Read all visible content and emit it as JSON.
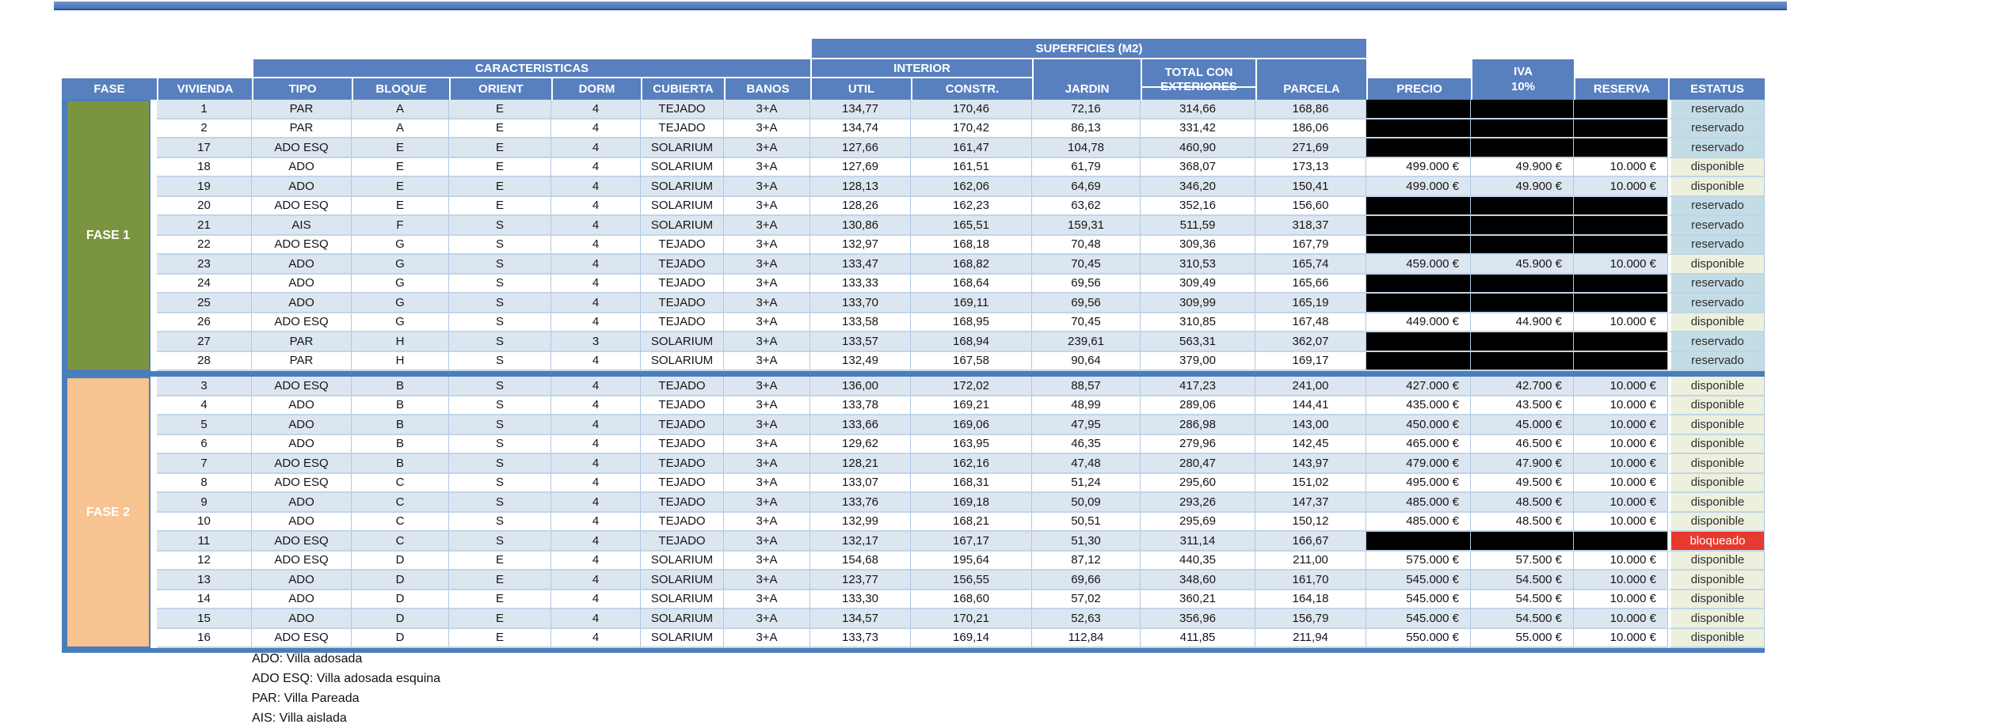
{
  "table": {
    "banners": {
      "superficies": "SUPERFICIES (M2)",
      "caracteristicas": "CARACTERISTICAS",
      "interior": "INTERIOR"
    },
    "headers": {
      "fase": "FASE",
      "vivienda": "VIVIENDA",
      "tipo": "TIPO",
      "bloque": "BLOQUE",
      "orient": "ORIENT",
      "dorm": "DORM",
      "cubierta": "CUBIERTA",
      "banos": "BANOS",
      "util": "UTIL",
      "constr": "CONSTR.",
      "jardin": "JARDIN",
      "total_line1": "TOTAL CON",
      "total_line2": "EXTERIORES",
      "parcela": "PARCELA",
      "precio": "PRECIO",
      "iva_line1": "IVA",
      "iva_line2": "10%",
      "reserva": "RESERVA",
      "estatus": "ESTATUS"
    },
    "colors": {
      "header_blue": "#5880bf",
      "table_border_blue": "#4a7ebb",
      "stripe_blue": "#dce6f1",
      "fase1_green": "#7b9440",
      "fase2_orange": "#f6c391",
      "status_reservado": "#c3dde6",
      "status_disponible": "#edf0dc",
      "status_bloqueado": "#e8392f",
      "redacted_black": "#000000"
    },
    "phases": [
      {
        "label": "FASE 1",
        "color": "#7b9440",
        "rows": [
          {
            "vivienda": "1",
            "tipo": "PAR",
            "bloque": "A",
            "orient": "E",
            "dorm": "4",
            "cubierta": "TEJADO",
            "banos": "3+A",
            "util": "134,77",
            "constr": "170,46",
            "jardin": "72,16",
            "total": "314,66",
            "parcela": "168,86",
            "precio": "",
            "iva": "",
            "reserva": "",
            "estatus": "reservado",
            "redacted": true
          },
          {
            "vivienda": "2",
            "tipo": "PAR",
            "bloque": "A",
            "orient": "E",
            "dorm": "4",
            "cubierta": "TEJADO",
            "banos": "3+A",
            "util": "134,74",
            "constr": "170,42",
            "jardin": "86,13",
            "total": "331,42",
            "parcela": "186,06",
            "precio": "",
            "iva": "",
            "reserva": "",
            "estatus": "reservado",
            "redacted": true
          },
          {
            "vivienda": "17",
            "tipo": "ADO ESQ",
            "bloque": "E",
            "orient": "E",
            "dorm": "4",
            "cubierta": "SOLARIUM",
            "banos": "3+A",
            "util": "127,66",
            "constr": "161,47",
            "jardin": "104,78",
            "total": "460,90",
            "parcela": "271,69",
            "precio": "",
            "iva": "",
            "reserva": "",
            "estatus": "reservado",
            "redacted": true
          },
          {
            "vivienda": "18",
            "tipo": "ADO",
            "bloque": "E",
            "orient": "E",
            "dorm": "4",
            "cubierta": "SOLARIUM",
            "banos": "3+A",
            "util": "127,69",
            "constr": "161,51",
            "jardin": "61,79",
            "total": "368,07",
            "parcela": "173,13",
            "precio": "499.000 €",
            "iva": "49.900 €",
            "reserva": "10.000 €",
            "estatus": "disponible",
            "redacted": false
          },
          {
            "vivienda": "19",
            "tipo": "ADO",
            "bloque": "E",
            "orient": "E",
            "dorm": "4",
            "cubierta": "SOLARIUM",
            "banos": "3+A",
            "util": "128,13",
            "constr": "162,06",
            "jardin": "64,69",
            "total": "346,20",
            "parcela": "150,41",
            "precio": "499.000 €",
            "iva": "49.900 €",
            "reserva": "10.000 €",
            "estatus": "disponible",
            "redacted": false
          },
          {
            "vivienda": "20",
            "tipo": "ADO ESQ",
            "bloque": "E",
            "orient": "E",
            "dorm": "4",
            "cubierta": "SOLARIUM",
            "banos": "3+A",
            "util": "128,26",
            "constr": "162,23",
            "jardin": "63,62",
            "total": "352,16",
            "parcela": "156,60",
            "precio": "",
            "iva": "",
            "reserva": "",
            "estatus": "reservado",
            "redacted": true
          },
          {
            "vivienda": "21",
            "tipo": "AIS",
            "bloque": "F",
            "orient": "S",
            "dorm": "4",
            "cubierta": "SOLARIUM",
            "banos": "3+A",
            "util": "130,86",
            "constr": "165,51",
            "jardin": "159,31",
            "total": "511,59",
            "parcela": "318,37",
            "precio": "",
            "iva": "",
            "reserva": "",
            "estatus": "reservado",
            "redacted": true
          },
          {
            "vivienda": "22",
            "tipo": "ADO ESQ",
            "bloque": "G",
            "orient": "S",
            "dorm": "4",
            "cubierta": "TEJADO",
            "banos": "3+A",
            "util": "132,97",
            "constr": "168,18",
            "jardin": "70,48",
            "total": "309,36",
            "parcela": "167,79",
            "precio": "",
            "iva": "",
            "reserva": "",
            "estatus": "reservado",
            "redacted": true
          },
          {
            "vivienda": "23",
            "tipo": "ADO",
            "bloque": "G",
            "orient": "S",
            "dorm": "4",
            "cubierta": "TEJADO",
            "banos": "3+A",
            "util": "133,47",
            "constr": "168,82",
            "jardin": "70,45",
            "total": "310,53",
            "parcela": "165,74",
            "precio": "459.000 €",
            "iva": "45.900 €",
            "reserva": "10.000 €",
            "estatus": "disponible",
            "redacted": false
          },
          {
            "vivienda": "24",
            "tipo": "ADO",
            "bloque": "G",
            "orient": "S",
            "dorm": "4",
            "cubierta": "TEJADO",
            "banos": "3+A",
            "util": "133,33",
            "constr": "168,64",
            "jardin": "69,56",
            "total": "309,49",
            "parcela": "165,66",
            "precio": "",
            "iva": "",
            "reserva": "",
            "estatus": "reservado",
            "redacted": true
          },
          {
            "vivienda": "25",
            "tipo": "ADO",
            "bloque": "G",
            "orient": "S",
            "dorm": "4",
            "cubierta": "TEJADO",
            "banos": "3+A",
            "util": "133,70",
            "constr": "169,11",
            "jardin": "69,56",
            "total": "309,99",
            "parcela": "165,19",
            "precio": "",
            "iva": "",
            "reserva": "",
            "estatus": "reservado",
            "redacted": true
          },
          {
            "vivienda": "26",
            "tipo": "ADO ESQ",
            "bloque": "G",
            "orient": "S",
            "dorm": "4",
            "cubierta": "TEJADO",
            "banos": "3+A",
            "util": "133,58",
            "constr": "168,95",
            "jardin": "70,45",
            "total": "310,85",
            "parcela": "167,48",
            "precio": "449.000 €",
            "iva": "44.900 €",
            "reserva": "10.000 €",
            "estatus": "disponible",
            "redacted": false
          },
          {
            "vivienda": "27",
            "tipo": "PAR",
            "bloque": "H",
            "orient": "S",
            "dorm": "3",
            "cubierta": "SOLARIUM",
            "banos": "3+A",
            "util": "133,57",
            "constr": "168,94",
            "jardin": "239,61",
            "total": "563,31",
            "parcela": "362,07",
            "precio": "",
            "iva": "",
            "reserva": "",
            "estatus": "reservado",
            "redacted": true
          },
          {
            "vivienda": "28",
            "tipo": "PAR",
            "bloque": "H",
            "orient": "S",
            "dorm": "4",
            "cubierta": "SOLARIUM",
            "banos": "3+A",
            "util": "132,49",
            "constr": "167,58",
            "jardin": "90,64",
            "total": "379,00",
            "parcela": "169,17",
            "precio": "",
            "iva": "",
            "reserva": "",
            "estatus": "reservado",
            "redacted": true
          }
        ]
      },
      {
        "label": "FASE 2",
        "color": "#f6c391",
        "rows": [
          {
            "vivienda": "3",
            "tipo": "ADO ESQ",
            "bloque": "B",
            "orient": "S",
            "dorm": "4",
            "cubierta": "TEJADO",
            "banos": "3+A",
            "util": "136,00",
            "constr": "172,02",
            "jardin": "88,57",
            "total": "417,23",
            "parcela": "241,00",
            "precio": "427.000 €",
            "iva": "42.700 €",
            "reserva": "10.000 €",
            "estatus": "disponible",
            "redacted": false
          },
          {
            "vivienda": "4",
            "tipo": "ADO",
            "bloque": "B",
            "orient": "S",
            "dorm": "4",
            "cubierta": "TEJADO",
            "banos": "3+A",
            "util": "133,78",
            "constr": "169,21",
            "jardin": "48,99",
            "total": "289,06",
            "parcela": "144,41",
            "precio": "435.000 €",
            "iva": "43.500 €",
            "reserva": "10.000 €",
            "estatus": "disponible",
            "redacted": false
          },
          {
            "vivienda": "5",
            "tipo": "ADO",
            "bloque": "B",
            "orient": "S",
            "dorm": "4",
            "cubierta": "TEJADO",
            "banos": "3+A",
            "util": "133,66",
            "constr": "169,06",
            "jardin": "47,95",
            "total": "286,98",
            "parcela": "143,00",
            "precio": "450.000 €",
            "iva": "45.000 €",
            "reserva": "10.000 €",
            "estatus": "disponible",
            "redacted": false
          },
          {
            "vivienda": "6",
            "tipo": "ADO",
            "bloque": "B",
            "orient": "S",
            "dorm": "4",
            "cubierta": "TEJADO",
            "banos": "3+A",
            "util": "129,62",
            "constr": "163,95",
            "jardin": "46,35",
            "total": "279,96",
            "parcela": "142,45",
            "precio": "465.000 €",
            "iva": "46.500 €",
            "reserva": "10.000 €",
            "estatus": "disponible",
            "redacted": false
          },
          {
            "vivienda": "7",
            "tipo": "ADO ESQ",
            "bloque": "B",
            "orient": "S",
            "dorm": "4",
            "cubierta": "TEJADO",
            "banos": "3+A",
            "util": "128,21",
            "constr": "162,16",
            "jardin": "47,48",
            "total": "280,47",
            "parcela": "143,97",
            "precio": "479.000 €",
            "iva": "47.900 €",
            "reserva": "10.000 €",
            "estatus": "disponible",
            "redacted": false
          },
          {
            "vivienda": "8",
            "tipo": "ADO ESQ",
            "bloque": "C",
            "orient": "S",
            "dorm": "4",
            "cubierta": "TEJADO",
            "banos": "3+A",
            "util": "133,07",
            "constr": "168,31",
            "jardin": "51,24",
            "total": "295,60",
            "parcela": "151,02",
            "precio": "495.000 €",
            "iva": "49.500 €",
            "reserva": "10.000 €",
            "estatus": "disponible",
            "redacted": false
          },
          {
            "vivienda": "9",
            "tipo": "ADO",
            "bloque": "C",
            "orient": "S",
            "dorm": "4",
            "cubierta": "TEJADO",
            "banos": "3+A",
            "util": "133,76",
            "constr": "169,18",
            "jardin": "50,09",
            "total": "293,26",
            "parcela": "147,37",
            "precio": "485.000 €",
            "iva": "48.500 €",
            "reserva": "10.000 €",
            "estatus": "disponible",
            "redacted": false
          },
          {
            "vivienda": "10",
            "tipo": "ADO",
            "bloque": "C",
            "orient": "S",
            "dorm": "4",
            "cubierta": "TEJADO",
            "banos": "3+A",
            "util": "132,99",
            "constr": "168,21",
            "jardin": "50,51",
            "total": "295,69",
            "parcela": "150,12",
            "precio": "485.000 €",
            "iva": "48.500 €",
            "reserva": "10.000 €",
            "estatus": "disponible",
            "redacted": false
          },
          {
            "vivienda": "11",
            "tipo": "ADO ESQ",
            "bloque": "C",
            "orient": "S",
            "dorm": "4",
            "cubierta": "TEJADO",
            "banos": "3+A",
            "util": "132,17",
            "constr": "167,17",
            "jardin": "51,30",
            "total": "311,14",
            "parcela": "166,67",
            "precio": "",
            "iva": "",
            "reserva": "",
            "estatus": "bloqueado",
            "redacted": true
          },
          {
            "vivienda": "12",
            "tipo": "ADO ESQ",
            "bloque": "D",
            "orient": "E",
            "dorm": "4",
            "cubierta": "SOLARIUM",
            "banos": "3+A",
            "util": "154,68",
            "constr": "195,64",
            "jardin": "87,12",
            "total": "440,35",
            "parcela": "211,00",
            "precio": "575.000 €",
            "iva": "57.500 €",
            "reserva": "10.000 €",
            "estatus": "disponible",
            "redacted": false
          },
          {
            "vivienda": "13",
            "tipo": "ADO",
            "bloque": "D",
            "orient": "E",
            "dorm": "4",
            "cubierta": "SOLARIUM",
            "banos": "3+A",
            "util": "123,77",
            "constr": "156,55",
            "jardin": "69,66",
            "total": "348,60",
            "parcela": "161,70",
            "precio": "545.000 €",
            "iva": "54.500 €",
            "reserva": "10.000 €",
            "estatus": "disponible",
            "redacted": false
          },
          {
            "vivienda": "14",
            "tipo": "ADO",
            "bloque": "D",
            "orient": "E",
            "dorm": "4",
            "cubierta": "SOLARIUM",
            "banos": "3+A",
            "util": "133,30",
            "constr": "168,60",
            "jardin": "57,02",
            "total": "360,21",
            "parcela": "164,18",
            "precio": "545.000 €",
            "iva": "54.500 €",
            "reserva": "10.000 €",
            "estatus": "disponible",
            "redacted": false
          },
          {
            "vivienda": "15",
            "tipo": "ADO",
            "bloque": "D",
            "orient": "E",
            "dorm": "4",
            "cubierta": "SOLARIUM",
            "banos": "3+A",
            "util": "134,57",
            "constr": "170,21",
            "jardin": "52,63",
            "total": "356,96",
            "parcela": "156,79",
            "precio": "545.000 €",
            "iva": "54.500 €",
            "reserva": "10.000 €",
            "estatus": "disponible",
            "redacted": false
          },
          {
            "vivienda": "16",
            "tipo": "ADO ESQ",
            "bloque": "D",
            "orient": "E",
            "dorm": "4",
            "cubierta": "SOLARIUM",
            "banos": "3+A",
            "util": "133,73",
            "constr": "169,14",
            "jardin": "112,84",
            "total": "411,85",
            "parcela": "211,94",
            "precio": "550.000 €",
            "iva": "55.000 €",
            "reserva": "10.000 €",
            "estatus": "disponible",
            "redacted": false
          }
        ]
      }
    ]
  },
  "footnotes": [
    "ADO: Villa adosada",
    "ADO ESQ: Villa adosada esquina",
    "PAR: Villa Pareada",
    "AIS: Villa aislada"
  ]
}
